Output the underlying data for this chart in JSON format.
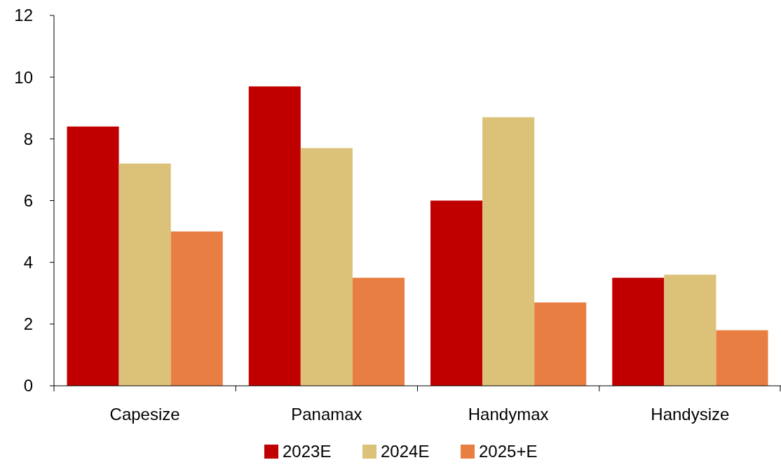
{
  "chart_data": {
    "type": "bar",
    "categories": [
      "Capesize",
      "Panamax",
      "Handymax",
      "Handysize"
    ],
    "series": [
      {
        "name": "2023E",
        "color": "#c00000",
        "values": [
          8.4,
          9.7,
          6.0,
          3.5
        ]
      },
      {
        "name": "2024E",
        "color": "#dcc278",
        "values": [
          7.2,
          7.7,
          8.7,
          3.6
        ]
      },
      {
        "name": "2025+E",
        "color": "#e97e42",
        "values": [
          5.0,
          3.5,
          2.7,
          1.8
        ]
      }
    ],
    "ylim": [
      0,
      12
    ],
    "yticks": [
      0,
      2,
      4,
      6,
      8,
      10,
      12
    ],
    "grid": false,
    "legend": "bottom"
  }
}
